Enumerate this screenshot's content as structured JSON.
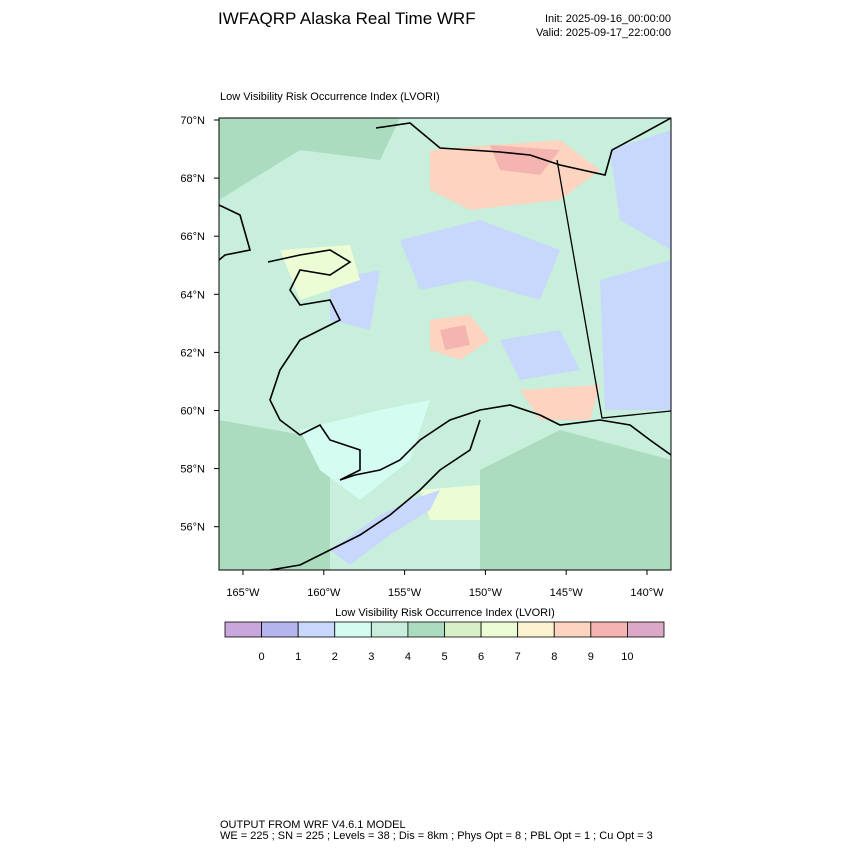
{
  "header": {
    "title": "IWFAQRP Alaska Real Time WRF",
    "init": "Init: 2025-09-16_00:00:00",
    "valid": "Valid: 2025-09-17_22:00:00"
  },
  "map": {
    "title": "Low Visibility Risk Occurrence Index   (LVORI)",
    "lat_labels": [
      "70°N",
      "68°N",
      "66°N",
      "64°N",
      "62°N",
      "60°N",
      "58°N",
      "56°N"
    ],
    "lon_labels": [
      "165°W",
      "160°W",
      "155°W",
      "150°W",
      "145°W",
      "140°W"
    ]
  },
  "colorbar": {
    "title": "Low Visibility Risk Occurrence Index  (LVORI)",
    "labels": [
      0,
      1,
      2,
      3,
      4,
      5,
      6,
      7,
      8,
      9,
      10
    ],
    "colors": [
      "#c8a8dc",
      "#b4b4ee",
      "#c8d8fc",
      "#d4fcf0",
      "#c8eedc",
      "#acdcc0",
      "#d8f0c8",
      "#ecfcd4",
      "#fcf4d0",
      "#fcd4c0",
      "#f4b4b0",
      "#dca8c8"
    ]
  },
  "footer": {
    "line1": "OUTPUT FROM WRF V4.6.1 MODEL",
    "line2": "WE = 225 ; SN = 225 ; Levels = 38 ; Dis = 8km ; Phys Opt = 8 ; PBL Opt = 1 ; Cu Opt = 3"
  }
}
